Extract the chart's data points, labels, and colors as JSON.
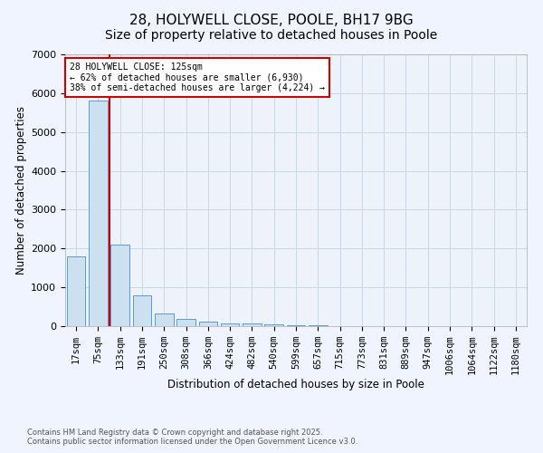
{
  "title": "28, HOLYWELL CLOSE, POOLE, BH17 9BG",
  "subtitle": "Size of property relative to detached houses in Poole",
  "xlabel": "Distribution of detached houses by size in Poole",
  "ylabel": "Number of detached properties",
  "categories": [
    "17sqm",
    "75sqm",
    "133sqm",
    "191sqm",
    "250sqm",
    "308sqm",
    "366sqm",
    "424sqm",
    "482sqm",
    "540sqm",
    "599sqm",
    "657sqm",
    "715sqm",
    "773sqm",
    "831sqm",
    "889sqm",
    "947sqm",
    "1006sqm",
    "1064sqm",
    "1122sqm",
    "1180sqm"
  ],
  "values": [
    1800,
    5800,
    2100,
    800,
    320,
    190,
    110,
    80,
    60,
    40,
    30,
    15,
    8,
    3,
    2,
    1,
    1,
    1,
    0,
    0,
    0
  ],
  "bar_color": "#cce0f0",
  "bar_edge_color": "#5b9bd5",
  "red_line_x": 1.5,
  "ylim": [
    0,
    7000
  ],
  "annotation_line1": "28 HOLYWELL CLOSE: 125sqm",
  "annotation_line2": "← 62% of detached houses are smaller (6,930)",
  "annotation_line3": "38% of semi-detached houses are larger (4,224) →",
  "annotation_box_color": "#ffffff",
  "annotation_border_color": "#cc0000",
  "red_line_color": "#cc0000",
  "footer1": "Contains HM Land Registry data © Crown copyright and database right 2025.",
  "footer2": "Contains public sector information licensed under the Open Government Licence v3.0.",
  "background_color": "#f0f4ff",
  "plot_bg_color": "#eef3fb",
  "grid_color": "#c8d8e8",
  "title_fontsize": 11,
  "axis_fontsize": 8,
  "tick_fontsize": 7.5
}
